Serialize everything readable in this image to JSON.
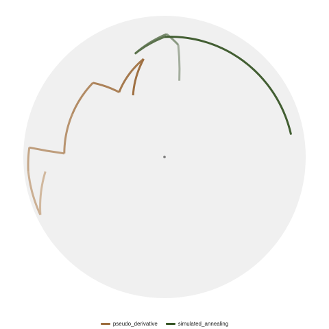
{
  "chart_data": {
    "type": "polar_line",
    "title": "",
    "background": "#f0f0f0",
    "center_marker": true,
    "series": [
      {
        "name": "pseudo_derivative",
        "color": "#9c6c3c",
        "color_fade": "#d4bca4",
        "points": [
          {
            "angle": 263,
            "radius": 0.85
          },
          {
            "angle": 245,
            "radius": 0.97
          },
          {
            "angle": 264,
            "radius": 0.97
          },
          {
            "angle": 274,
            "radius": 0.96
          },
          {
            "angle": 272,
            "radius": 0.71
          },
          {
            "angle": 295,
            "radius": 0.72
          },
          {
            "angle": 316,
            "radius": 0.73
          },
          {
            "angle": 325,
            "radius": 0.56
          },
          {
            "angle": 348,
            "radius": 0.71
          },
          {
            "angle": 333,
            "radius": 0.49
          }
        ]
      },
      {
        "name": "simulated_annealing",
        "color": "#365424",
        "color_fade": "#b0b8ac",
        "points": [
          {
            "angle": 11,
            "radius": 0.55
          },
          {
            "angle": 7,
            "radius": 0.8
          },
          {
            "angle": 1,
            "radius": 0.87
          },
          {
            "angle": 344,
            "radius": 0.76
          },
          {
            "angle": 0,
            "radius": 0.85
          },
          {
            "angle": 80,
            "radius": 0.91
          }
        ]
      }
    ],
    "legend": {
      "position": "bottom",
      "entries": [
        "pseudo_derivative",
        "simulated_annealing"
      ]
    }
  }
}
